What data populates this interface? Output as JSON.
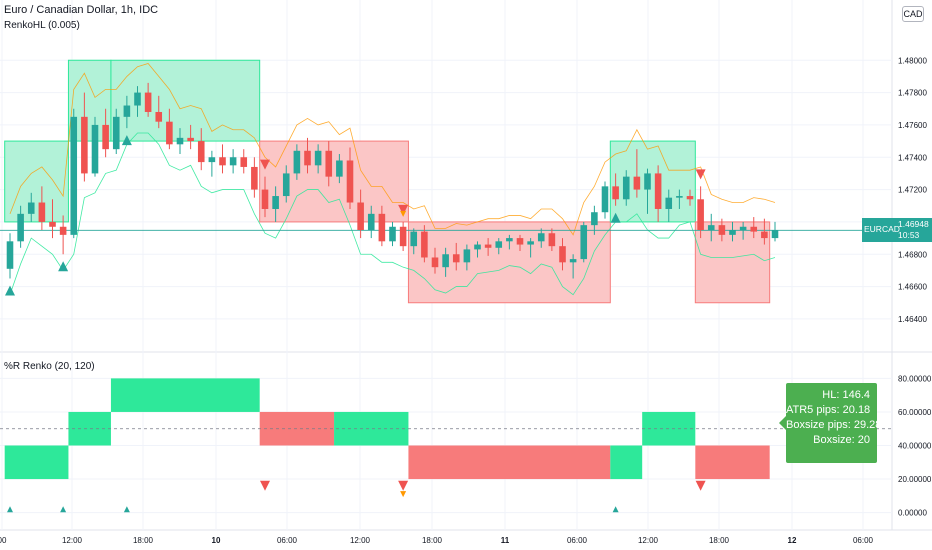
{
  "header": {
    "symbol_title": "Euro / Canadian Dollar, 1h, IDC",
    "overlay_title": "RenkoHL (0.005)",
    "currency": "CAD"
  },
  "subpane": {
    "title": "%R Renko (20, 120)"
  },
  "price_tag": {
    "symbol": "EURCAD",
    "price": "1.46948",
    "time": "10:53"
  },
  "info_box": {
    "hl": "HL: 146.4",
    "atr": "ATR5 pips:  20.18",
    "boxsize_pips": "Boxsize pips:  29.28",
    "boxsize": "Boxsize: 20"
  },
  "colors": {
    "up": "#26a69a",
    "down": "#ef5350",
    "band_green": "#2ee89a",
    "band_red": "#f77b7b",
    "orange": "#ff9800"
  },
  "chart_data": [
    {
      "type": "candlestick",
      "title": "Euro / Canadian Dollar, 1h, IDC",
      "ylim": [
        1.4635,
        1.4815
      ],
      "y_ticks": [
        "1.48000",
        "1.47800",
        "1.47600",
        "1.47400",
        "1.47200",
        "1.47000",
        "1.46800",
        "1.46600",
        "1.46400"
      ],
      "x_ticks": [
        "00",
        "12:00",
        "18:00",
        "10",
        "06:00",
        "12:00",
        "18:00",
        "11",
        "06:00",
        "12:00",
        "18:00",
        "12",
        "06:00"
      ],
      "last_price": 1.46948,
      "candles": [
        [
          1.4671,
          1.4693,
          1.4665,
          1.4688
        ],
        [
          1.4688,
          1.471,
          1.4684,
          1.4705
        ],
        [
          1.4705,
          1.4718,
          1.47,
          1.4712
        ],
        [
          1.4712,
          1.4722,
          1.4695,
          1.47
        ],
        [
          1.47,
          1.4714,
          1.469,
          1.4697
        ],
        [
          1.4697,
          1.4704,
          1.468,
          1.4692
        ],
        [
          1.4692,
          1.477,
          1.469,
          1.4765
        ],
        [
          1.4765,
          1.478,
          1.4725,
          1.473
        ],
        [
          1.473,
          1.4765,
          1.4728,
          1.476
        ],
        [
          1.476,
          1.477,
          1.474,
          1.4745
        ],
        [
          1.4745,
          1.477,
          1.4742,
          1.4765
        ],
        [
          1.4765,
          1.4778,
          1.4758,
          1.4772
        ],
        [
          1.4772,
          1.4784,
          1.4765,
          1.478
        ],
        [
          1.478,
          1.4786,
          1.4765,
          1.4768
        ],
        [
          1.4768,
          1.4778,
          1.4758,
          1.4762
        ],
        [
          1.4762,
          1.477,
          1.4745,
          1.4748
        ],
        [
          1.4748,
          1.4758,
          1.4742,
          1.4752
        ],
        [
          1.4752,
          1.476,
          1.4745,
          1.475
        ],
        [
          1.475,
          1.4758,
          1.4732,
          1.4737
        ],
        [
          1.4737,
          1.4744,
          1.4728,
          1.474
        ],
        [
          1.474,
          1.4748,
          1.473,
          1.4735
        ],
        [
          1.4735,
          1.4745,
          1.473,
          1.474
        ],
        [
          1.474,
          1.4745,
          1.473,
          1.4734
        ],
        [
          1.4734,
          1.474,
          1.4715,
          1.472
        ],
        [
          1.472,
          1.4728,
          1.4703,
          1.4708
        ],
        [
          1.4708,
          1.4722,
          1.47,
          1.4716
        ],
        [
          1.4716,
          1.4735,
          1.4712,
          1.473
        ],
        [
          1.473,
          1.4748,
          1.4726,
          1.4744
        ],
        [
          1.4744,
          1.4752,
          1.473,
          1.4735
        ],
        [
          1.4735,
          1.4748,
          1.473,
          1.4744
        ],
        [
          1.4744,
          1.475,
          1.4722,
          1.4728
        ],
        [
          1.4728,
          1.4742,
          1.4724,
          1.4738
        ],
        [
          1.4738,
          1.4746,
          1.4708,
          1.4712
        ],
        [
          1.4712,
          1.472,
          1.469,
          1.4695
        ],
        [
          1.4695,
          1.471,
          1.469,
          1.4705
        ],
        [
          1.4705,
          1.471,
          1.4685,
          1.4688
        ],
        [
          1.4688,
          1.47,
          1.4685,
          1.4697
        ],
        [
          1.4697,
          1.47,
          1.4682,
          1.4685
        ],
        [
          1.4685,
          1.4696,
          1.468,
          1.4694
        ],
        [
          1.4694,
          1.4698,
          1.4675,
          1.4678
        ],
        [
          1.4678,
          1.4684,
          1.4668,
          1.4672
        ],
        [
          1.4672,
          1.4684,
          1.4666,
          1.468
        ],
        [
          1.468,
          1.4687,
          1.467,
          1.4675
        ],
        [
          1.4675,
          1.4686,
          1.467,
          1.4683
        ],
        [
          1.4683,
          1.4688,
          1.4678,
          1.4686
        ],
        [
          1.4686,
          1.469,
          1.4679,
          1.4684
        ],
        [
          1.4684,
          1.469,
          1.468,
          1.4688
        ],
        [
          1.4688,
          1.4692,
          1.4683,
          1.469
        ],
        [
          1.469,
          1.4692,
          1.4682,
          1.4686
        ],
        [
          1.4686,
          1.469,
          1.4678,
          1.4688
        ],
        [
          1.4688,
          1.4696,
          1.4684,
          1.4693
        ],
        [
          1.4693,
          1.4696,
          1.4682,
          1.4685
        ],
        [
          1.4685,
          1.469,
          1.467,
          1.4675
        ],
        [
          1.4675,
          1.468,
          1.4665,
          1.4677
        ],
        [
          1.4677,
          1.47,
          1.4675,
          1.4698
        ],
        [
          1.4698,
          1.471,
          1.4692,
          1.4706
        ],
        [
          1.4706,
          1.4725,
          1.4702,
          1.4722
        ],
        [
          1.4722,
          1.473,
          1.471,
          1.4714
        ],
        [
          1.4714,
          1.4732,
          1.471,
          1.4728
        ],
        [
          1.4728,
          1.4745,
          1.4715,
          1.472
        ],
        [
          1.472,
          1.4733,
          1.4705,
          1.473
        ],
        [
          1.473,
          1.4735,
          1.47,
          1.4708
        ],
        [
          1.4708,
          1.472,
          1.47,
          1.4715
        ],
        [
          1.4715,
          1.472,
          1.4708,
          1.4716
        ],
        [
          1.4716,
          1.472,
          1.471,
          1.4714
        ],
        [
          1.4714,
          1.4722,
          1.469,
          1.4695
        ],
        [
          1.4695,
          1.4705,
          1.4688,
          1.4698
        ],
        [
          1.4698,
          1.4702,
          1.4688,
          1.4692
        ],
        [
          1.4692,
          1.47,
          1.4688,
          1.4695
        ],
        [
          1.4695,
          1.47,
          1.4689,
          1.4697
        ],
        [
          1.4697,
          1.4703,
          1.469,
          1.4694
        ],
        [
          1.4694,
          1.4702,
          1.4686,
          1.469
        ],
        [
          1.469,
          1.47,
          1.4688,
          1.4695
        ]
      ],
      "renko_band": [
        {
          "from": 0,
          "to": 6,
          "top": 1.475,
          "bottom": 1.47,
          "color": "green"
        },
        {
          "from": 6,
          "to": 10,
          "top": 1.48,
          "bottom": 1.475,
          "color": "green"
        },
        {
          "from": 10,
          "to": 24,
          "top": 1.48,
          "bottom": 1.475,
          "color": "green"
        },
        {
          "from": 24,
          "to": 38,
          "top": 1.475,
          "bottom": 1.47,
          "color": "red"
        },
        {
          "from": 38,
          "to": 57,
          "top": 1.47,
          "bottom": 1.465,
          "color": "red"
        },
        {
          "from": 57,
          "to": 65,
          "top": 1.475,
          "bottom": 1.47,
          "color": "green"
        },
        {
          "from": 65,
          "to": 72,
          "top": 1.47,
          "bottom": 1.465,
          "color": "red"
        }
      ],
      "triangles": [
        {
          "i": 0,
          "dir": "up"
        },
        {
          "i": 5,
          "dir": "up"
        },
        {
          "i": 11,
          "dir": "up"
        },
        {
          "i": 24,
          "dir": "down"
        },
        {
          "i": 37,
          "dir": "down"
        },
        {
          "i": 37,
          "dir": "down-orange"
        },
        {
          "i": 57,
          "dir": "up"
        },
        {
          "i": 65,
          "dir": "down"
        }
      ]
    },
    {
      "type": "area",
      "title": "%R Renko (20, 120)",
      "ylim": [
        -5,
        85
      ],
      "y_ticks": [
        "80.00000",
        "60.00000",
        "40.00000",
        "20.00000",
        "0.00000"
      ],
      "dashed_level": 50,
      "bands": [
        {
          "from": 0,
          "to": 6,
          "top": 40,
          "bottom": 20,
          "color": "green"
        },
        {
          "from": 6,
          "to": 10,
          "top": 60,
          "bottom": 40,
          "color": "green"
        },
        {
          "from": 10,
          "to": 24,
          "top": 80,
          "bottom": 60,
          "color": "green"
        },
        {
          "from": 24,
          "to": 31,
          "top": 60,
          "bottom": 40,
          "color": "red"
        },
        {
          "from": 31,
          "to": 38,
          "top": 60,
          "bottom": 40,
          "color": "green"
        },
        {
          "from": 38,
          "to": 57,
          "top": 40,
          "bottom": 20,
          "color": "red"
        },
        {
          "from": 57,
          "to": 60,
          "top": 40,
          "bottom": 20,
          "color": "green"
        },
        {
          "from": 60,
          "to": 65,
          "top": 60,
          "bottom": 40,
          "color": "green"
        },
        {
          "from": 65,
          "to": 72,
          "top": 40,
          "bottom": 20,
          "color": "red"
        }
      ]
    }
  ]
}
